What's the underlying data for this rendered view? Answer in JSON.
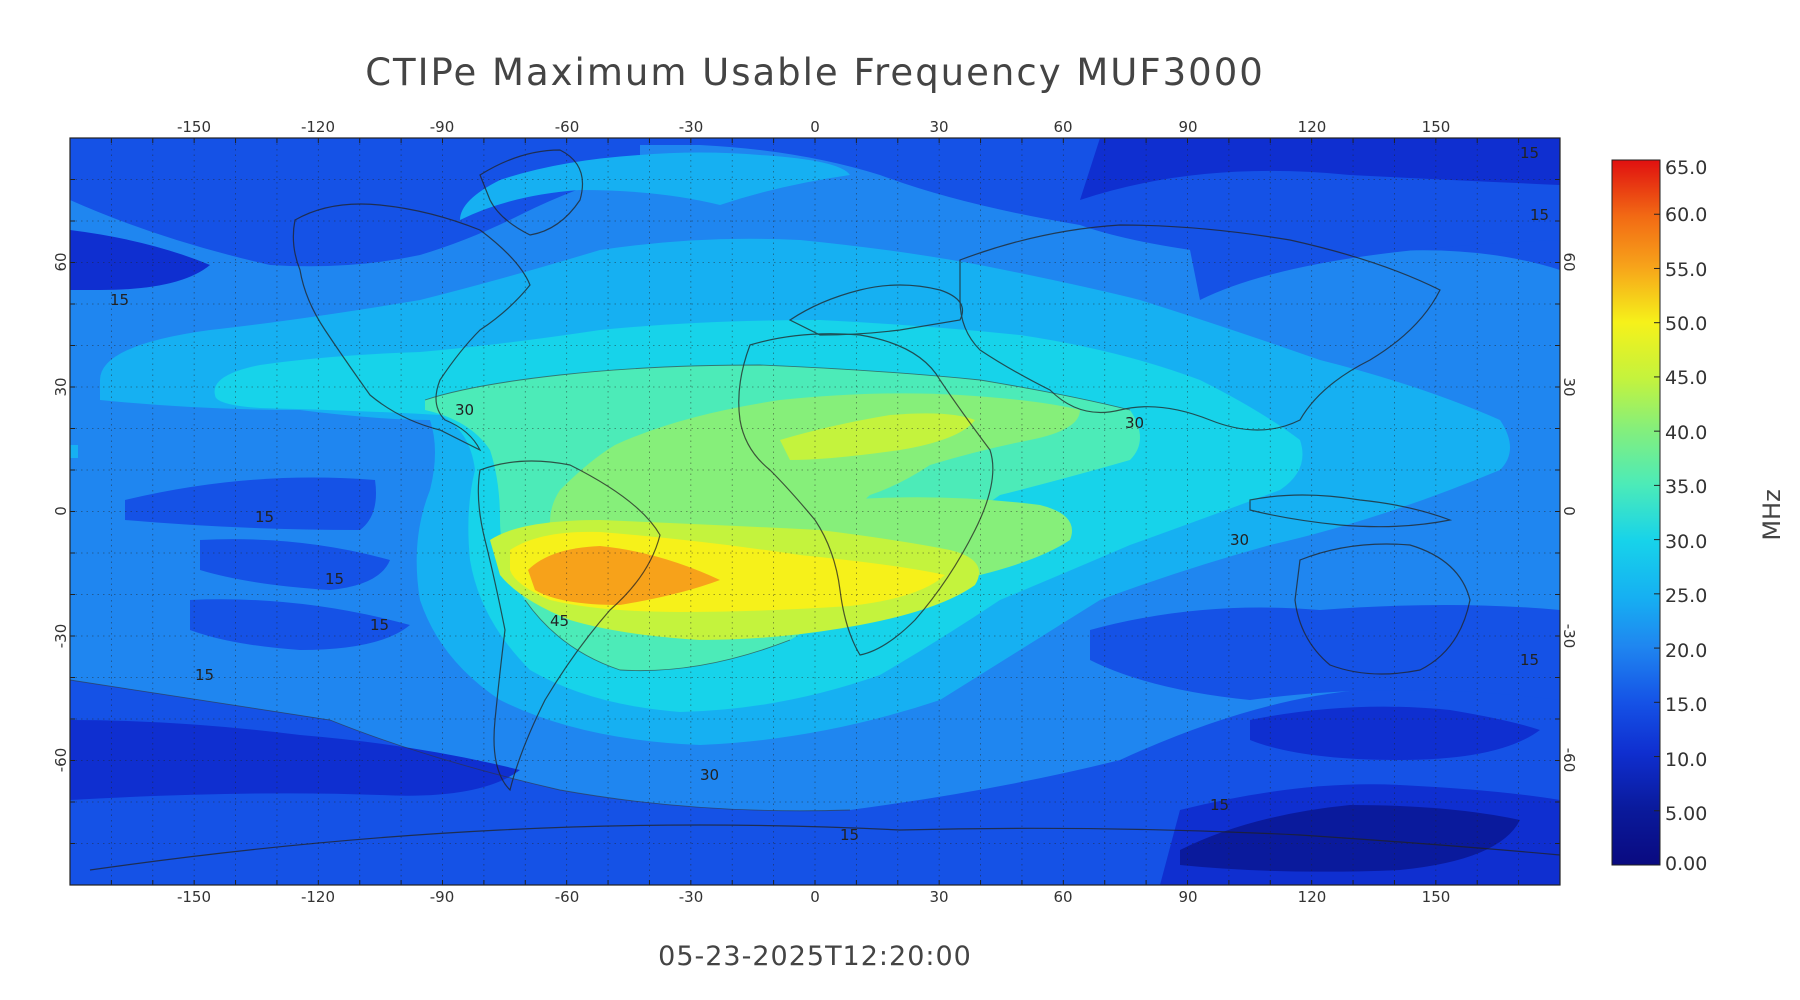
{
  "title": "CTIPe Maximum Usable Frequency MUF3000",
  "timestamp": "05-23-2025T12:20:00",
  "colorbar": {
    "unit": "MHz",
    "min": 0,
    "max": 65,
    "labels": [
      "65.0",
      "60.0",
      "55.0",
      "50.0",
      "45.0",
      "40.0",
      "35.0",
      "30.0",
      "25.0",
      "20.0",
      "15.0",
      "10.0",
      "5.00",
      "0.00"
    ]
  },
  "axes": {
    "lon_ticks": [
      "-150",
      "-120",
      "-90",
      "-60",
      "-30",
      "0",
      "30",
      "60",
      "90",
      "120",
      "150"
    ],
    "lat_ticks": [
      "60",
      "30",
      "0",
      "-30",
      "-60"
    ]
  },
  "contour_labels": [
    "30",
    "30",
    "30",
    "30",
    "45",
    "15",
    "15",
    "15",
    "15",
    "15",
    "15",
    "15",
    "15",
    "15",
    "15"
  ],
  "colors": {
    "c0": "#0a1a9c",
    "c5": "#0f2fd0",
    "c10": "#1552e6",
    "c15": "#1f86f0",
    "c20": "#16b0f2",
    "c25": "#17d3ea",
    "c30": "#4cebb8",
    "c35": "#86ef7a",
    "c40": "#c4f33d",
    "c45": "#f6f11a",
    "c50": "#f7a21a",
    "c55": "#f26a14",
    "c60": "#e8361a",
    "c65": "#e01010"
  }
}
